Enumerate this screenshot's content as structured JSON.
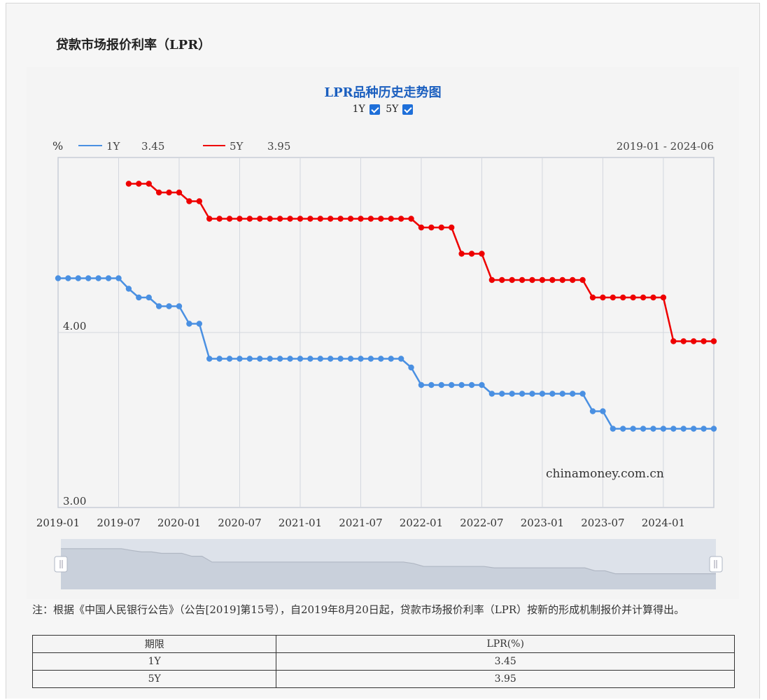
{
  "page": {
    "title": "贷款市场报价利率（LPR）",
    "watermark": "chinamoney.com.cn"
  },
  "toggles": [
    {
      "label": "1Y",
      "checked": true
    },
    {
      "label": "5Y",
      "checked": true
    }
  ],
  "legend": {
    "unit": "%",
    "range": "2019-01 - 2024-06",
    "items": [
      {
        "name": "1Y",
        "value": "3.45",
        "color": "#4a90e2"
      },
      {
        "name": "5Y",
        "value": "3.95",
        "color": "#ee0000"
      }
    ]
  },
  "chart_data": {
    "type": "line",
    "title": "LPR品种历史走势图",
    "ylabel": "%",
    "x_start": "2019-01",
    "x_end": "2024-06",
    "ylim": [
      3.0,
      5.0
    ],
    "y_tick_labels": [
      "3.00",
      "4.00"
    ],
    "x_tick_labels": [
      "2019-01",
      "2019-07",
      "2020-01",
      "2020-07",
      "2021-01",
      "2021-07",
      "2022-01",
      "2022-07",
      "2023-01",
      "2023-07",
      "2024-01"
    ],
    "grid": true,
    "series": [
      {
        "name": "1Y",
        "color": "#4a90e2",
        "segments": [
          {
            "from": "2019-01",
            "to": "2019-07",
            "value": 4.31
          },
          {
            "from": "2019-08",
            "to": "2019-08",
            "value": 4.25
          },
          {
            "from": "2019-09",
            "to": "2019-10",
            "value": 4.2
          },
          {
            "from": "2019-11",
            "to": "2020-01",
            "value": 4.15
          },
          {
            "from": "2020-02",
            "to": "2020-03",
            "value": 4.05
          },
          {
            "from": "2020-04",
            "to": "2021-11",
            "value": 3.85
          },
          {
            "from": "2021-12",
            "to": "2021-12",
            "value": 3.8
          },
          {
            "from": "2022-01",
            "to": "2022-07",
            "value": 3.7
          },
          {
            "from": "2022-08",
            "to": "2023-05",
            "value": 3.65
          },
          {
            "from": "2023-06",
            "to": "2023-07",
            "value": 3.55
          },
          {
            "from": "2023-08",
            "to": "2024-06",
            "value": 3.45
          }
        ]
      },
      {
        "name": "5Y",
        "color": "#ee0000",
        "segments": [
          {
            "from": "2019-08",
            "to": "2019-10",
            "value": 4.85
          },
          {
            "from": "2019-11",
            "to": "2020-01",
            "value": 4.8
          },
          {
            "from": "2020-02",
            "to": "2020-03",
            "value": 4.75
          },
          {
            "from": "2020-04",
            "to": "2021-12",
            "value": 4.65
          },
          {
            "from": "2022-01",
            "to": "2022-04",
            "value": 4.6
          },
          {
            "from": "2022-05",
            "to": "2022-07",
            "value": 4.45
          },
          {
            "from": "2022-08",
            "to": "2023-05",
            "value": 4.3
          },
          {
            "from": "2023-06",
            "to": "2024-01",
            "value": 4.2
          },
          {
            "from": "2024-02",
            "to": "2024-06",
            "value": 3.95
          }
        ]
      }
    ]
  },
  "note": "注：根据《中国人民银行公告》（公告[2019]第15号），自2019年8月20日起，贷款市场报价利率（LPR）按新的形成机制报价并计算得出。",
  "table": {
    "headers": [
      "期限",
      "LPR(%)"
    ],
    "rows": [
      [
        "1Y",
        "3.45"
      ],
      [
        "5Y",
        "3.95"
      ]
    ]
  }
}
